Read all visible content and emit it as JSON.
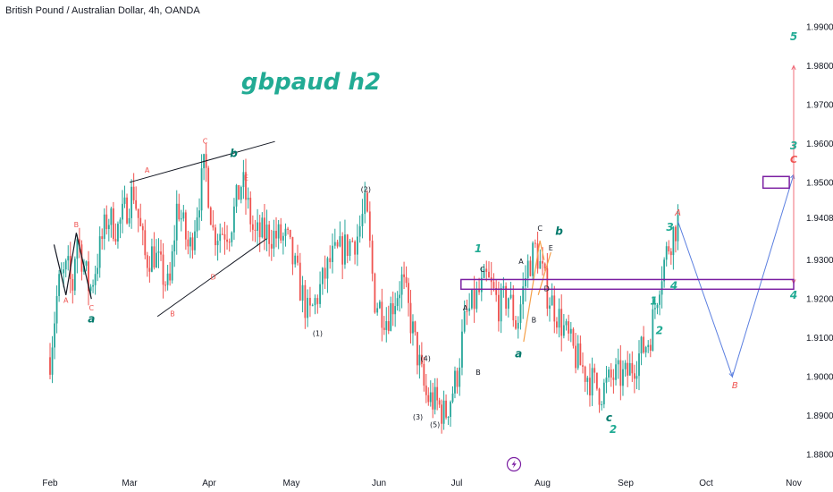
{
  "header": {
    "symbol_text": "British Pound / Australian Dollar, 4h, OANDA"
  },
  "colors": {
    "up": "#26a69a",
    "down": "#ef5350",
    "teal_label": "#22ab94",
    "box": "#7b1fa2",
    "blue_path": "#5b7fe0",
    "red_path": "#f06c7a",
    "trend": "#131722",
    "orange": "#f5a04a"
  },
  "chart_data": {
    "type": "candlestick",
    "title": "gbpaud h2",
    "xlabel": "",
    "ylabel": "",
    "ylim": [
      1.875,
      2.0
    ],
    "y_ticks": [
      "1.99000",
      "1.98000",
      "1.97000",
      "1.96000",
      "1.95000",
      "1.94086",
      "1.93000",
      "1.92000",
      "1.91000",
      "1.90000",
      "1.89000",
      "1.88000"
    ],
    "y_tick_values": [
      1.99,
      1.98,
      1.97,
      1.96,
      1.95,
      1.94086,
      1.93,
      1.92,
      1.91,
      1.9,
      1.89,
      1.88
    ],
    "x_months": [
      "Feb",
      "Mar",
      "Apr",
      "May",
      "Jun",
      "Jul",
      "Aug",
      "Sep",
      "Oct",
      "Nov"
    ],
    "x_month_values": [
      1,
      2,
      3,
      4,
      5,
      6,
      7,
      8,
      9,
      10
    ],
    "price_path": [
      [
        0.0,
        1.905
      ],
      [
        0.1,
        1.923
      ],
      [
        0.22,
        1.928
      ],
      [
        0.28,
        1.922
      ],
      [
        0.33,
        1.937
      ],
      [
        0.5,
        1.922
      ],
      [
        0.72,
        1.941
      ],
      [
        0.85,
        1.938
      ],
      [
        1.05,
        1.948
      ],
      [
        1.2,
        1.93
      ],
      [
        1.3,
        1.932
      ],
      [
        1.5,
        1.922
      ],
      [
        1.6,
        1.945
      ],
      [
        1.75,
        1.932
      ],
      [
        1.95,
        1.955
      ],
      [
        2.05,
        1.937
      ],
      [
        2.25,
        1.938
      ],
      [
        2.4,
        1.9505
      ],
      [
        2.55,
        1.936
      ],
      [
        2.7,
        1.937
      ],
      [
        2.95,
        1.935
      ],
      [
        3.2,
        1.915
      ],
      [
        3.45,
        1.93
      ],
      [
        3.6,
        1.933
      ],
      [
        3.75,
        1.936
      ],
      [
        3.85,
        1.944
      ],
      [
        3.95,
        1.92
      ],
      [
        4.1,
        1.915
      ],
      [
        4.3,
        1.925
      ],
      [
        4.5,
        1.905
      ],
      [
        4.6,
        1.895
      ],
      [
        4.75,
        1.893
      ],
      [
        4.85,
        1.89
      ],
      [
        5.0,
        1.9
      ],
      [
        5.1,
        1.915
      ],
      [
        5.35,
        1.925
      ],
      [
        5.5,
        1.918
      ],
      [
        5.6,
        1.921
      ],
      [
        5.7,
        1.913
      ],
      [
        5.82,
        1.928
      ],
      [
        5.92,
        1.933
      ],
      [
        6.05,
        1.922
      ],
      [
        6.2,
        1.915
      ],
      [
        6.4,
        1.905
      ],
      [
        6.55,
        1.9
      ],
      [
        6.7,
        1.896
      ],
      [
        6.85,
        1.9
      ],
      [
        7.0,
        1.9
      ],
      [
        7.15,
        1.905
      ],
      [
        7.3,
        1.91
      ],
      [
        7.42,
        1.925
      ],
      [
        7.55,
        1.935
      ],
      [
        7.65,
        1.94
      ]
    ],
    "projection_blue": [
      [
        7.65,
        1.94
      ],
      [
        8.3,
        1.9
      ],
      [
        9.0,
        1.952
      ]
    ],
    "projection_red": [
      [
        9.0,
        1.952
      ],
      [
        9.35,
        1.924
      ],
      [
        9.85,
        1.98
      ]
    ],
    "zones": [
      {
        "x_from": 5.05,
        "x_to": 9.95,
        "y_low": 1.9225,
        "y_high": 1.925
      },
      {
        "x_from": 8.7,
        "x_to": 9.0,
        "y_low": 1.9485,
        "y_high": 1.9515
      },
      {
        "x_from": 9.0,
        "x_to": 9.3,
        "y_low": 1.9755,
        "y_high": 1.9805
      }
    ],
    "zones_x_extra": [
      [
        5.05,
        9.95
      ],
      [
        8.65,
        8.95
      ],
      [
        9.55,
        10.0
      ]
    ],
    "trend_lines": [
      [
        [
          1.0,
          1.95
        ],
        [
          2.8,
          1.9605
        ]
      ],
      [
        [
          1.35,
          1.9155
        ],
        [
          2.7,
          1.9355
        ]
      ]
    ],
    "wave_labels": [
      {
        "text": "A",
        "x": 0.2,
        "y": 1.919
      },
      {
        "text": "B",
        "x": 0.33,
        "y": 1.9385
      },
      {
        "text": "C",
        "x": 0.52,
        "y": 1.917
      },
      {
        "text": "a",
        "x": 0.52,
        "y": 1.914
      },
      {
        "text": "A",
        "x": 1.22,
        "y": 1.9525
      },
      {
        "text": "B",
        "x": 1.54,
        "y": 1.9155
      },
      {
        "text": "C",
        "x": 1.95,
        "y": 1.96
      },
      {
        "text": "b",
        "x": 2.3,
        "y": 1.9565
      },
      {
        "text": "D",
        "x": 2.05,
        "y": 1.925
      },
      {
        "text": "E",
        "x": 2.45,
        "y": 1.9505
      },
      {
        "text": "(1)",
        "x": 3.3,
        "y": 1.9105
      },
      {
        "text": "(2)",
        "x": 3.85,
        "y": 1.9475
      },
      {
        "text": "(3)",
        "x": 4.5,
        "y": 1.889
      },
      {
        "text": "(4)",
        "x": 4.6,
        "y": 1.904
      },
      {
        "text": "(5)",
        "x": 4.72,
        "y": 1.887
      },
      {
        "text": "A",
        "x": 5.1,
        "y": 1.917
      },
      {
        "text": "B",
        "x": 5.25,
        "y": 1.9005
      },
      {
        "text": "C",
        "x": 5.3,
        "y": 1.927
      },
      {
        "text": "1",
        "x": 5.25,
        "y": 1.932
      },
      {
        "text": "a",
        "x": 5.72,
        "y": 1.905
      },
      {
        "text": "A",
        "x": 5.75,
        "y": 1.929
      },
      {
        "text": "B",
        "x": 5.9,
        "y": 1.914
      },
      {
        "text": "C",
        "x": 5.97,
        "y": 1.9375
      },
      {
        "text": "D",
        "x": 6.05,
        "y": 1.922
      },
      {
        "text": "E",
        "x": 6.1,
        "y": 1.9325
      },
      {
        "text": "b",
        "x": 6.2,
        "y": 1.9365
      },
      {
        "text": "c",
        "x": 6.8,
        "y": 1.8885
      },
      {
        "text": "2",
        "x": 6.85,
        "y": 1.8855
      },
      {
        "text": "1",
        "x": 7.35,
        "y": 1.9185
      },
      {
        "text": "2",
        "x": 7.42,
        "y": 1.911
      },
      {
        "text": "3",
        "x": 7.55,
        "y": 1.9375
      },
      {
        "text": "4",
        "x": 7.6,
        "y": 1.9225
      },
      {
        "text": "A",
        "x": 7.65,
        "y": 1.9415
      },
      {
        "text": "B",
        "x": 8.33,
        "y": 1.897
      },
      {
        "text": "3",
        "x": 9.15,
        "y": 1.9585
      },
      {
        "text": "C",
        "x": 9.2,
        "y": 1.955
      },
      {
        "text": "4",
        "x": 9.95,
        "y": 1.92
      },
      {
        "text": "5",
        "x": 10.65,
        "y": 1.9865
      }
    ]
  }
}
